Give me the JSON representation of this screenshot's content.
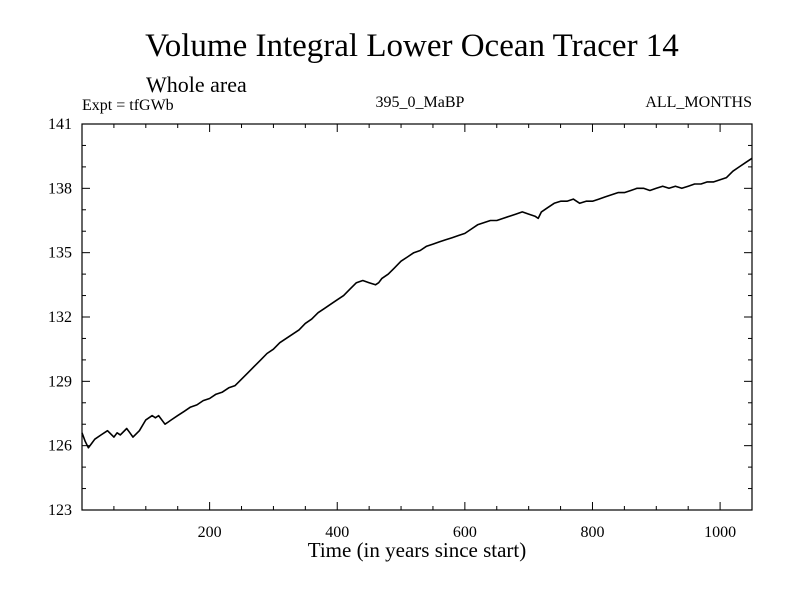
{
  "chart_data": {
    "type": "line",
    "title": "Volume Integral Lower Ocean Tracer 14",
    "subtitle": "Whole area",
    "annotations": {
      "experiment": "Expt = tfGWb",
      "run": "395_0_MaBP",
      "months": "ALL_MONTHS"
    },
    "xlabel": "Time (in years since start)",
    "ylabel": "",
    "xlim": [
      0,
      1050
    ],
    "ylim": [
      123,
      141
    ],
    "xticks": [
      200,
      400,
      600,
      800,
      1000
    ],
    "yticks": [
      123,
      126,
      129,
      132,
      135,
      138,
      141
    ],
    "grid": false,
    "series": [
      {
        "name": "Lower Ocean Tracer 14",
        "color": "#000000",
        "x": [
          0,
          5,
          10,
          15,
          20,
          30,
          40,
          50,
          55,
          60,
          70,
          75,
          80,
          90,
          100,
          110,
          115,
          120,
          130,
          135,
          140,
          150,
          160,
          170,
          180,
          190,
          200,
          210,
          220,
          230,
          240,
          250,
          260,
          270,
          280,
          290,
          300,
          310,
          320,
          330,
          340,
          350,
          360,
          370,
          380,
          390,
          400,
          410,
          420,
          430,
          440,
          450,
          460,
          465,
          470,
          480,
          490,
          500,
          510,
          520,
          530,
          540,
          550,
          560,
          570,
          580,
          590,
          600,
          610,
          620,
          630,
          640,
          650,
          660,
          670,
          680,
          690,
          700,
          710,
          715,
          720,
          730,
          740,
          750,
          760,
          770,
          780,
          790,
          800,
          810,
          820,
          830,
          840,
          850,
          860,
          870,
          880,
          890,
          900,
          910,
          920,
          930,
          940,
          950,
          960,
          970,
          980,
          990,
          1000,
          1010,
          1020,
          1030,
          1040,
          1050
        ],
        "values": [
          126.6,
          126.2,
          125.9,
          126.1,
          126.3,
          126.5,
          126.7,
          126.4,
          126.6,
          126.5,
          126.8,
          126.6,
          126.4,
          126.7,
          127.2,
          127.4,
          127.3,
          127.4,
          127.0,
          127.1,
          127.2,
          127.4,
          127.6,
          127.8,
          127.9,
          128.1,
          128.2,
          128.4,
          128.5,
          128.7,
          128.8,
          129.1,
          129.4,
          129.7,
          130.0,
          130.3,
          130.5,
          130.8,
          131.0,
          131.2,
          131.4,
          131.7,
          131.9,
          132.2,
          132.4,
          132.6,
          132.8,
          133.0,
          133.3,
          133.6,
          133.7,
          133.6,
          133.5,
          133.6,
          133.8,
          134.0,
          134.3,
          134.6,
          134.8,
          135.0,
          135.1,
          135.3,
          135.4,
          135.5,
          135.6,
          135.7,
          135.8,
          135.9,
          136.1,
          136.3,
          136.4,
          136.5,
          136.5,
          136.6,
          136.7,
          136.8,
          136.9,
          136.8,
          136.7,
          136.6,
          136.9,
          137.1,
          137.3,
          137.4,
          137.4,
          137.5,
          137.3,
          137.4,
          137.4,
          137.5,
          137.6,
          137.7,
          137.8,
          137.8,
          137.9,
          138.0,
          138.0,
          137.9,
          138.0,
          138.1,
          138.0,
          138.1,
          138.0,
          138.1,
          138.2,
          138.2,
          138.3,
          138.3,
          138.4,
          138.5,
          138.8,
          139.0,
          139.2,
          139.4
        ]
      }
    ]
  }
}
